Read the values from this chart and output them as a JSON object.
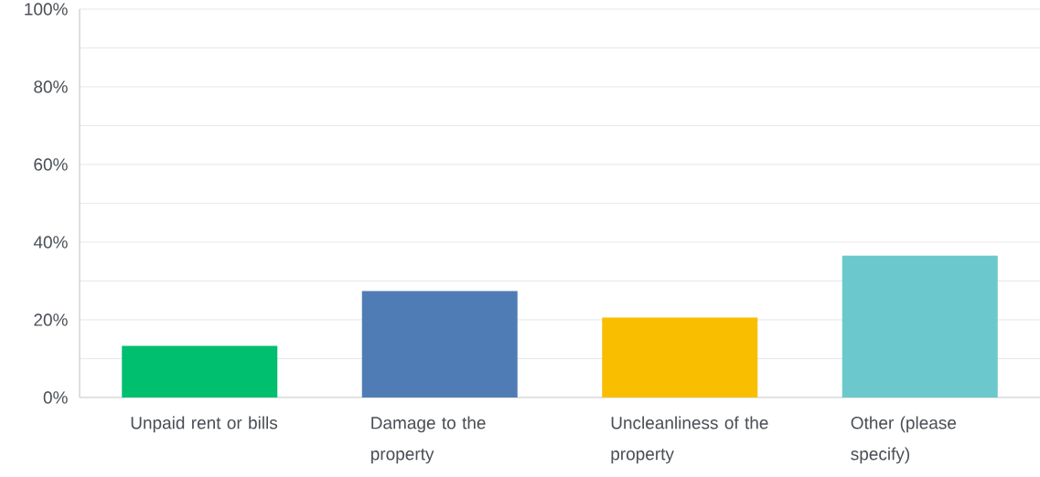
{
  "chart_data": {
    "type": "bar",
    "categories": [
      "Unpaid rent or bills",
      "Damage to the property",
      "Uncleanliness of the property",
      "Other (please specify)"
    ],
    "values": [
      13.3,
      27.4,
      20.6,
      36.5
    ],
    "colors": [
      "#00bf6f",
      "#507cb6",
      "#f9be00",
      "#6bc8cd"
    ],
    "ylim": [
      0,
      100
    ],
    "yticks": [
      {
        "value": 0,
        "label": "0%"
      },
      {
        "value": 10,
        "label": null
      },
      {
        "value": 20,
        "label": "20%"
      },
      {
        "value": 30,
        "label": null
      },
      {
        "value": 40,
        "label": "40%"
      },
      {
        "value": 50,
        "label": null
      },
      {
        "value": 60,
        "label": "60%"
      },
      {
        "value": 70,
        "label": null
      },
      {
        "value": 80,
        "label": "80%"
      },
      {
        "value": 90,
        "label": null
      },
      {
        "value": 100,
        "label": "100%"
      }
    ],
    "grid": "y"
  }
}
